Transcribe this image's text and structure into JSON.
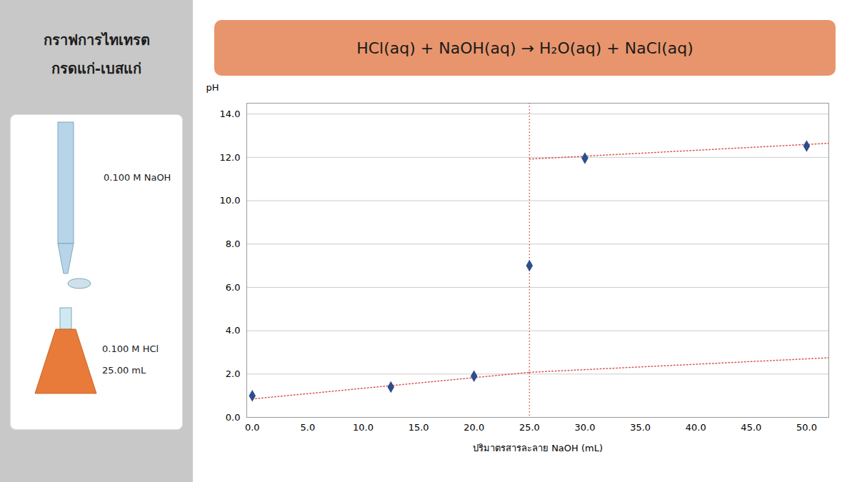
{
  "chart_data": {
    "type": "scatter",
    "title": "กราฟการไทเทรต",
    "subtitle": "กรดแก่-เบสแก่",
    "annotations": [
      {
        "text": "HCl(aq) + NaOH(aq) → H₂O(aq) + NaCl(aq)"
      },
      {
        "text": "0.100 M NaOH"
      },
      {
        "text": "0.100 M HCl"
      },
      {
        "text": "25.00 mL"
      }
    ],
    "xlabel": "ปริมาตรสารละลาย NaOH (mL)",
    "ylabel": "pH",
    "series": [
      {
        "type": "scatter",
        "x": [
          0.0,
          12.5,
          20.0,
          25.0,
          30.0,
          50.0
        ],
        "values": [
          1.0,
          1.4,
          1.9,
          7.0,
          11.96,
          12.52
        ],
        "color": "#2e4d8c",
        "marker": "diamond"
      },
      {
        "type": "line",
        "x": [
          0.0,
          25.0
        ],
        "values": [
          0.85,
          2.08
        ],
        "color": "#d9534f",
        "line_style": "dotted"
      },
      {
        "type": "line",
        "x": [
          25.0,
          52.0
        ],
        "values": [
          11.92,
          12.65
        ],
        "color": "#d9534f",
        "line_style": "dotted"
      },
      {
        "type": "line",
        "x": [
          25.0,
          52.0
        ],
        "values": [
          2.08,
          2.75
        ],
        "color": "#d9534f",
        "line_style": "dotted"
      }
    ],
    "vline": {
      "x": 25.0,
      "color": "#d9534f",
      "line_style": "dotted"
    },
    "xlim": [
      -0.5,
      52.0
    ],
    "ylim": [
      0.0,
      14.5
    ],
    "xticks": [
      {
        "value": 0.0,
        "label": "0.0"
      },
      {
        "value": 5.0,
        "label": "5.0"
      },
      {
        "value": 10.0,
        "label": "10.0"
      },
      {
        "value": 15.0,
        "label": "15.0"
      },
      {
        "value": 20.0,
        "label": "20.0"
      },
      {
        "value": 25.0,
        "label": "25.0"
      },
      {
        "value": 30.0,
        "label": "30.0"
      },
      {
        "value": 35.0,
        "label": "35.0"
      },
      {
        "value": 40.0,
        "label": "40.0"
      },
      {
        "value": 45.0,
        "label": "45.0"
      },
      {
        "value": 50.0,
        "label": "50.0"
      }
    ],
    "yticks": [
      {
        "value": 0.0,
        "label": "0.0"
      },
      {
        "value": 2.0,
        "label": "2.0"
      },
      {
        "value": 4.0,
        "label": "4.0"
      },
      {
        "value": 6.0,
        "label": "6.0"
      },
      {
        "value": 8.0,
        "label": "8.0"
      },
      {
        "value": 10.0,
        "label": "10.0"
      },
      {
        "value": 12.0,
        "label": "12.0"
      },
      {
        "value": 14.0,
        "label": "14.0"
      }
    ],
    "grid": "y"
  }
}
